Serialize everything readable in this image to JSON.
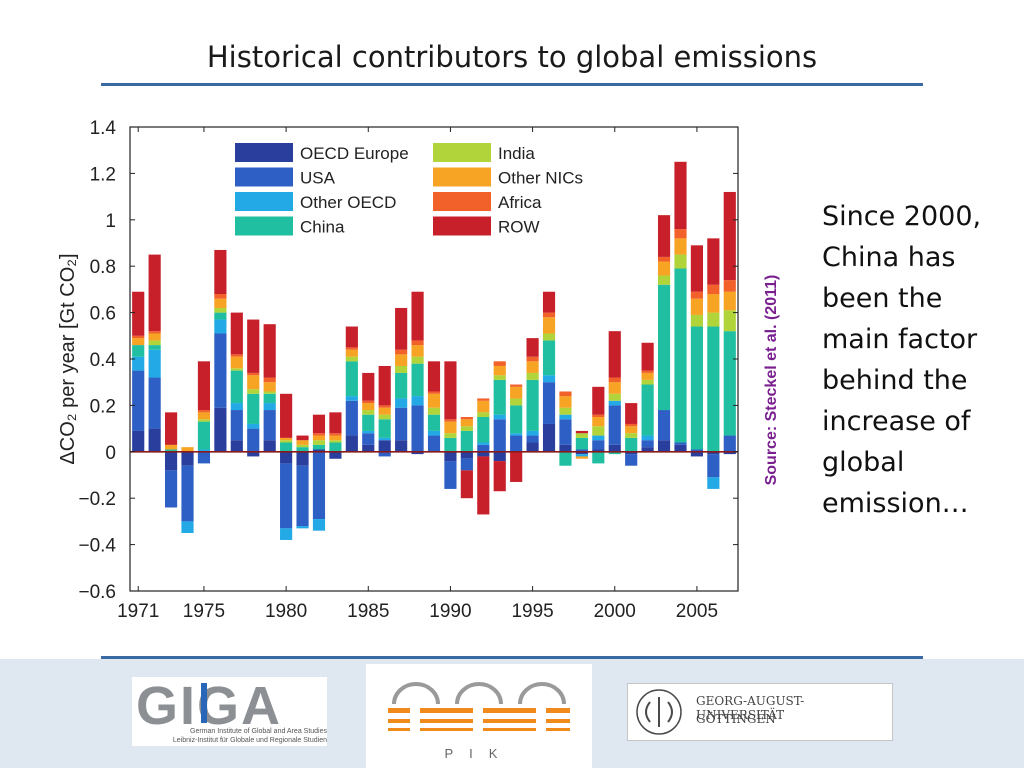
{
  "slide": {
    "title": "Historical contributors to global emissions",
    "source": "Source: Steckel et al. (2011)",
    "note": "Since 2000, China has been the main factor behind the increase of global emission…"
  },
  "logos": {
    "giga_letters": "GIGA",
    "giga_line1": "German Institute of Global and Area Studies",
    "giga_line2": "Leibniz-Institut für Globale und Regionale Studien",
    "pik_label": "PIK",
    "goettingen_line1": "GEORG-AUGUST-UNIVERSITÄT",
    "goettingen_line2": "GÖTTINGEN"
  },
  "chart_data": {
    "type": "bar",
    "stacked": true,
    "title": "",
    "ylabel": "ΔCO₂ per year [Gt CO₂]",
    "xlabel": "",
    "ylim": [
      -0.6,
      1.4
    ],
    "yticks": [
      "1.4",
      "1.2",
      "1",
      "0.8",
      "0.6",
      "0.4",
      "0.2",
      "0",
      "−0.2",
      "−0.4",
      "−0.6"
    ],
    "xticks": [
      "1971",
      "1975",
      "1980",
      "1985",
      "1990",
      "1995",
      "2000",
      "2005"
    ],
    "legend_position": "top-inside",
    "categories": [
      1971,
      1972,
      1973,
      1974,
      1975,
      1976,
      1977,
      1978,
      1979,
      1980,
      1981,
      1982,
      1983,
      1984,
      1985,
      1986,
      1987,
      1988,
      1989,
      1990,
      1991,
      1992,
      1993,
      1994,
      1995,
      1996,
      1997,
      1998,
      1999,
      2000,
      2001,
      2002,
      2003,
      2004,
      2005,
      2006,
      2007
    ],
    "series": [
      {
        "name": "OECD Europe",
        "color": "#2a3f9d",
        "values": [
          0.09,
          0.1,
          -0.08,
          -0.06,
          0.0,
          0.19,
          0.05,
          -0.02,
          0.05,
          -0.05,
          -0.06,
          0.01,
          -0.03,
          0.07,
          0.03,
          0.05,
          0.05,
          -0.01,
          0.0,
          -0.04,
          -0.03,
          -0.02,
          -0.04,
          0.0,
          0.04,
          0.12,
          0.03,
          -0.01,
          0.01,
          0.03,
          -0.01,
          0.02,
          0.05,
          0.03,
          -0.02,
          -0.01,
          -0.01
        ]
      },
      {
        "name": "USA",
        "color": "#2e5fc4",
        "values": [
          0.26,
          0.22,
          -0.16,
          -0.24,
          -0.05,
          0.32,
          0.13,
          0.1,
          0.13,
          -0.28,
          -0.26,
          -0.29,
          0.0,
          0.15,
          0.05,
          -0.02,
          0.14,
          0.2,
          0.07,
          -0.12,
          -0.05,
          0.03,
          0.14,
          0.07,
          0.03,
          0.18,
          0.11,
          0.01,
          0.04,
          0.17,
          -0.05,
          0.03,
          0.13,
          0.01,
          0.01,
          -0.1,
          0.07
        ]
      },
      {
        "name": "Other OECD",
        "color": "#22a9e6",
        "values": [
          0.06,
          0.12,
          0.0,
          -0.05,
          0.01,
          0.06,
          0.03,
          0.02,
          0.03,
          -0.05,
          -0.01,
          -0.05,
          0.0,
          0.02,
          0.01,
          0.01,
          0.04,
          0.04,
          0.02,
          0.0,
          0.0,
          0.01,
          0.02,
          0.01,
          0.02,
          0.03,
          0.02,
          -0.01,
          0.02,
          0.02,
          0.0,
          0.02,
          0.0,
          0.0,
          0.0,
          -0.05,
          0.0
        ]
      },
      {
        "name": "China",
        "color": "#20bfa2",
        "values": [
          0.05,
          0.02,
          0.01,
          0.0,
          0.12,
          0.03,
          0.14,
          0.13,
          0.04,
          0.04,
          0.02,
          0.02,
          0.04,
          0.15,
          0.07,
          0.08,
          0.11,
          0.14,
          0.07,
          0.06,
          0.09,
          0.11,
          0.15,
          0.12,
          0.22,
          0.15,
          -0.06,
          0.05,
          -0.05,
          -0.01,
          0.06,
          0.22,
          0.54,
          0.75,
          0.53,
          0.54,
          0.45
        ]
      },
      {
        "name": "India",
        "color": "#b0d43a",
        "values": [
          0.0,
          0.02,
          0.0,
          0.0,
          0.01,
          0.02,
          0.01,
          0.02,
          0.01,
          0.01,
          0.01,
          0.02,
          0.01,
          0.02,
          0.02,
          0.02,
          0.03,
          0.03,
          0.03,
          0.02,
          0.02,
          0.02,
          0.02,
          0.03,
          0.03,
          0.03,
          0.03,
          0.02,
          0.04,
          0.03,
          0.02,
          0.02,
          0.04,
          0.06,
          0.05,
          0.06,
          0.09
        ]
      },
      {
        "name": "Other NICs",
        "color": "#f7a324",
        "values": [
          0.03,
          0.03,
          0.02,
          0.02,
          0.03,
          0.04,
          0.05,
          0.06,
          0.04,
          0.01,
          0.02,
          0.02,
          0.02,
          0.03,
          0.03,
          0.03,
          0.05,
          0.05,
          0.06,
          0.05,
          0.03,
          0.05,
          0.04,
          0.05,
          0.05,
          0.07,
          0.05,
          -0.01,
          0.04,
          0.05,
          0.03,
          0.03,
          0.06,
          0.07,
          0.07,
          0.08,
          0.08
        ]
      },
      {
        "name": "Africa",
        "color": "#f2612a",
        "values": [
          0.01,
          0.01,
          0.0,
          0.0,
          0.01,
          0.02,
          0.01,
          0.01,
          0.02,
          0.0,
          0.0,
          0.01,
          0.01,
          0.01,
          0.01,
          0.01,
          0.02,
          0.02,
          0.01,
          0.01,
          0.01,
          0.01,
          0.02,
          0.01,
          0.02,
          0.02,
          0.02,
          0.0,
          0.01,
          0.02,
          0.01,
          0.01,
          0.02,
          0.04,
          0.03,
          0.04,
          0.05
        ]
      },
      {
        "name": "ROW",
        "color": "#c8202a",
        "values": [
          0.19,
          0.33,
          0.14,
          0.0,
          0.21,
          0.19,
          0.18,
          0.23,
          0.23,
          0.19,
          0.02,
          0.08,
          0.09,
          0.09,
          0.12,
          0.17,
          0.18,
          0.21,
          0.13,
          0.25,
          -0.12,
          -0.25,
          -0.13,
          -0.13,
          0.08,
          0.09,
          0.0,
          0.01,
          0.12,
          0.2,
          0.09,
          0.12,
          0.18,
          0.29,
          0.2,
          0.2,
          0.38
        ]
      }
    ]
  }
}
